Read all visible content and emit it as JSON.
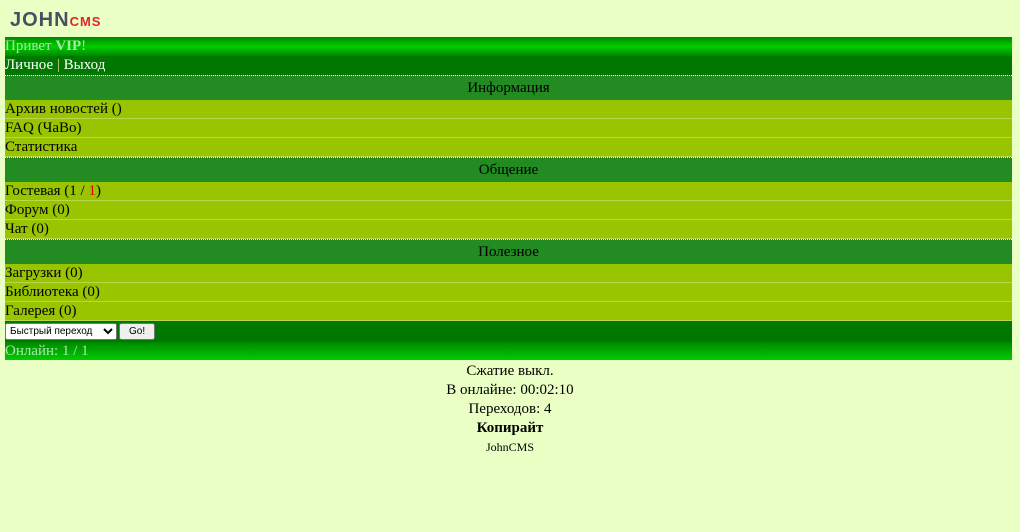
{
  "logo": {
    "text": "JOHN",
    "suffix": "CMS"
  },
  "header": {
    "greeting": "Привет ",
    "user": "VIP",
    "exclaim": "!"
  },
  "top_menu": {
    "personal": "Личное",
    "separator": "|",
    "logout": "Выход"
  },
  "sections": [
    {
      "title": "Информация",
      "items": [
        {
          "label": "Архив новостей ()"
        },
        {
          "label": "FAQ (ЧаВо)"
        },
        {
          "label": "Статистика"
        }
      ]
    },
    {
      "title": "Общение",
      "items": [
        {
          "label": "Гостевая (1 / ",
          "red": "1",
          "tail": ")"
        },
        {
          "label": "Форум (0)"
        },
        {
          "label": "Чат (0)"
        }
      ]
    },
    {
      "title": "Полезное",
      "items": [
        {
          "label": "Загрузки (0)"
        },
        {
          "label": "Библиотека (0)"
        },
        {
          "label": "Галерея (0)"
        }
      ]
    }
  ],
  "quick_jump": {
    "selected": "Быстрый переход",
    "go": "Go!"
  },
  "footer": {
    "online": "Онлайн: 1 / 1"
  },
  "info": {
    "compression": "Сжатие выкл.",
    "online_time": "В онлайне: 00:02:10",
    "transitions": "Переходов: 4",
    "copyright": "Копирайт",
    "brand": "JohnCMS"
  }
}
